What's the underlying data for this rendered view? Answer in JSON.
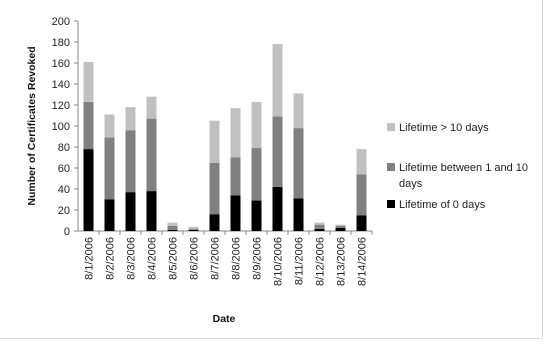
{
  "chart_data": {
    "type": "bar",
    "stacked": true,
    "title": "",
    "xlabel": "Date",
    "ylabel": "Number of Certificates Revoked",
    "ylim": [
      0,
      200
    ],
    "yticks": [
      0,
      20,
      40,
      60,
      80,
      100,
      120,
      140,
      160,
      180,
      200
    ],
    "grid": false,
    "legend_position": "right",
    "categories": [
      "8/1/2006",
      "8/2/2006",
      "8/3/2006",
      "8/4/2006",
      "8/5/2006",
      "8/6/2006",
      "8/7/2006",
      "8/8/2006",
      "8/9/2006",
      "8/10/2006",
      "8/11/2006",
      "8/12/2006",
      "8/13/2006",
      "8/14/2006"
    ],
    "series": [
      {
        "name": "Lifetime of 0 days",
        "color": "#000000",
        "values": [
          78,
          30,
          37,
          38,
          1,
          1,
          16,
          34,
          29,
          42,
          31,
          2,
          3,
          15
        ]
      },
      {
        "name": "Lifetime between 1 and 10 days",
        "color": "#808080",
        "values": [
          45,
          59,
          59,
          69,
          4,
          1,
          49,
          36,
          50,
          67,
          67,
          4,
          2,
          39
        ]
      },
      {
        "name": "Lifetime > 10 days",
        "color": "#c0c0c0",
        "values": [
          38,
          22,
          22,
          21,
          3,
          2,
          40,
          47,
          44,
          69,
          33,
          2,
          1,
          24
        ]
      }
    ],
    "legend": [
      {
        "name": "Lifetime > 10 days",
        "color": "#c0c0c0"
      },
      {
        "name": "Lifetime between 1 and 10 days",
        "color": "#808080"
      },
      {
        "name": "Lifetime of 0 days",
        "color": "#000000"
      }
    ]
  }
}
